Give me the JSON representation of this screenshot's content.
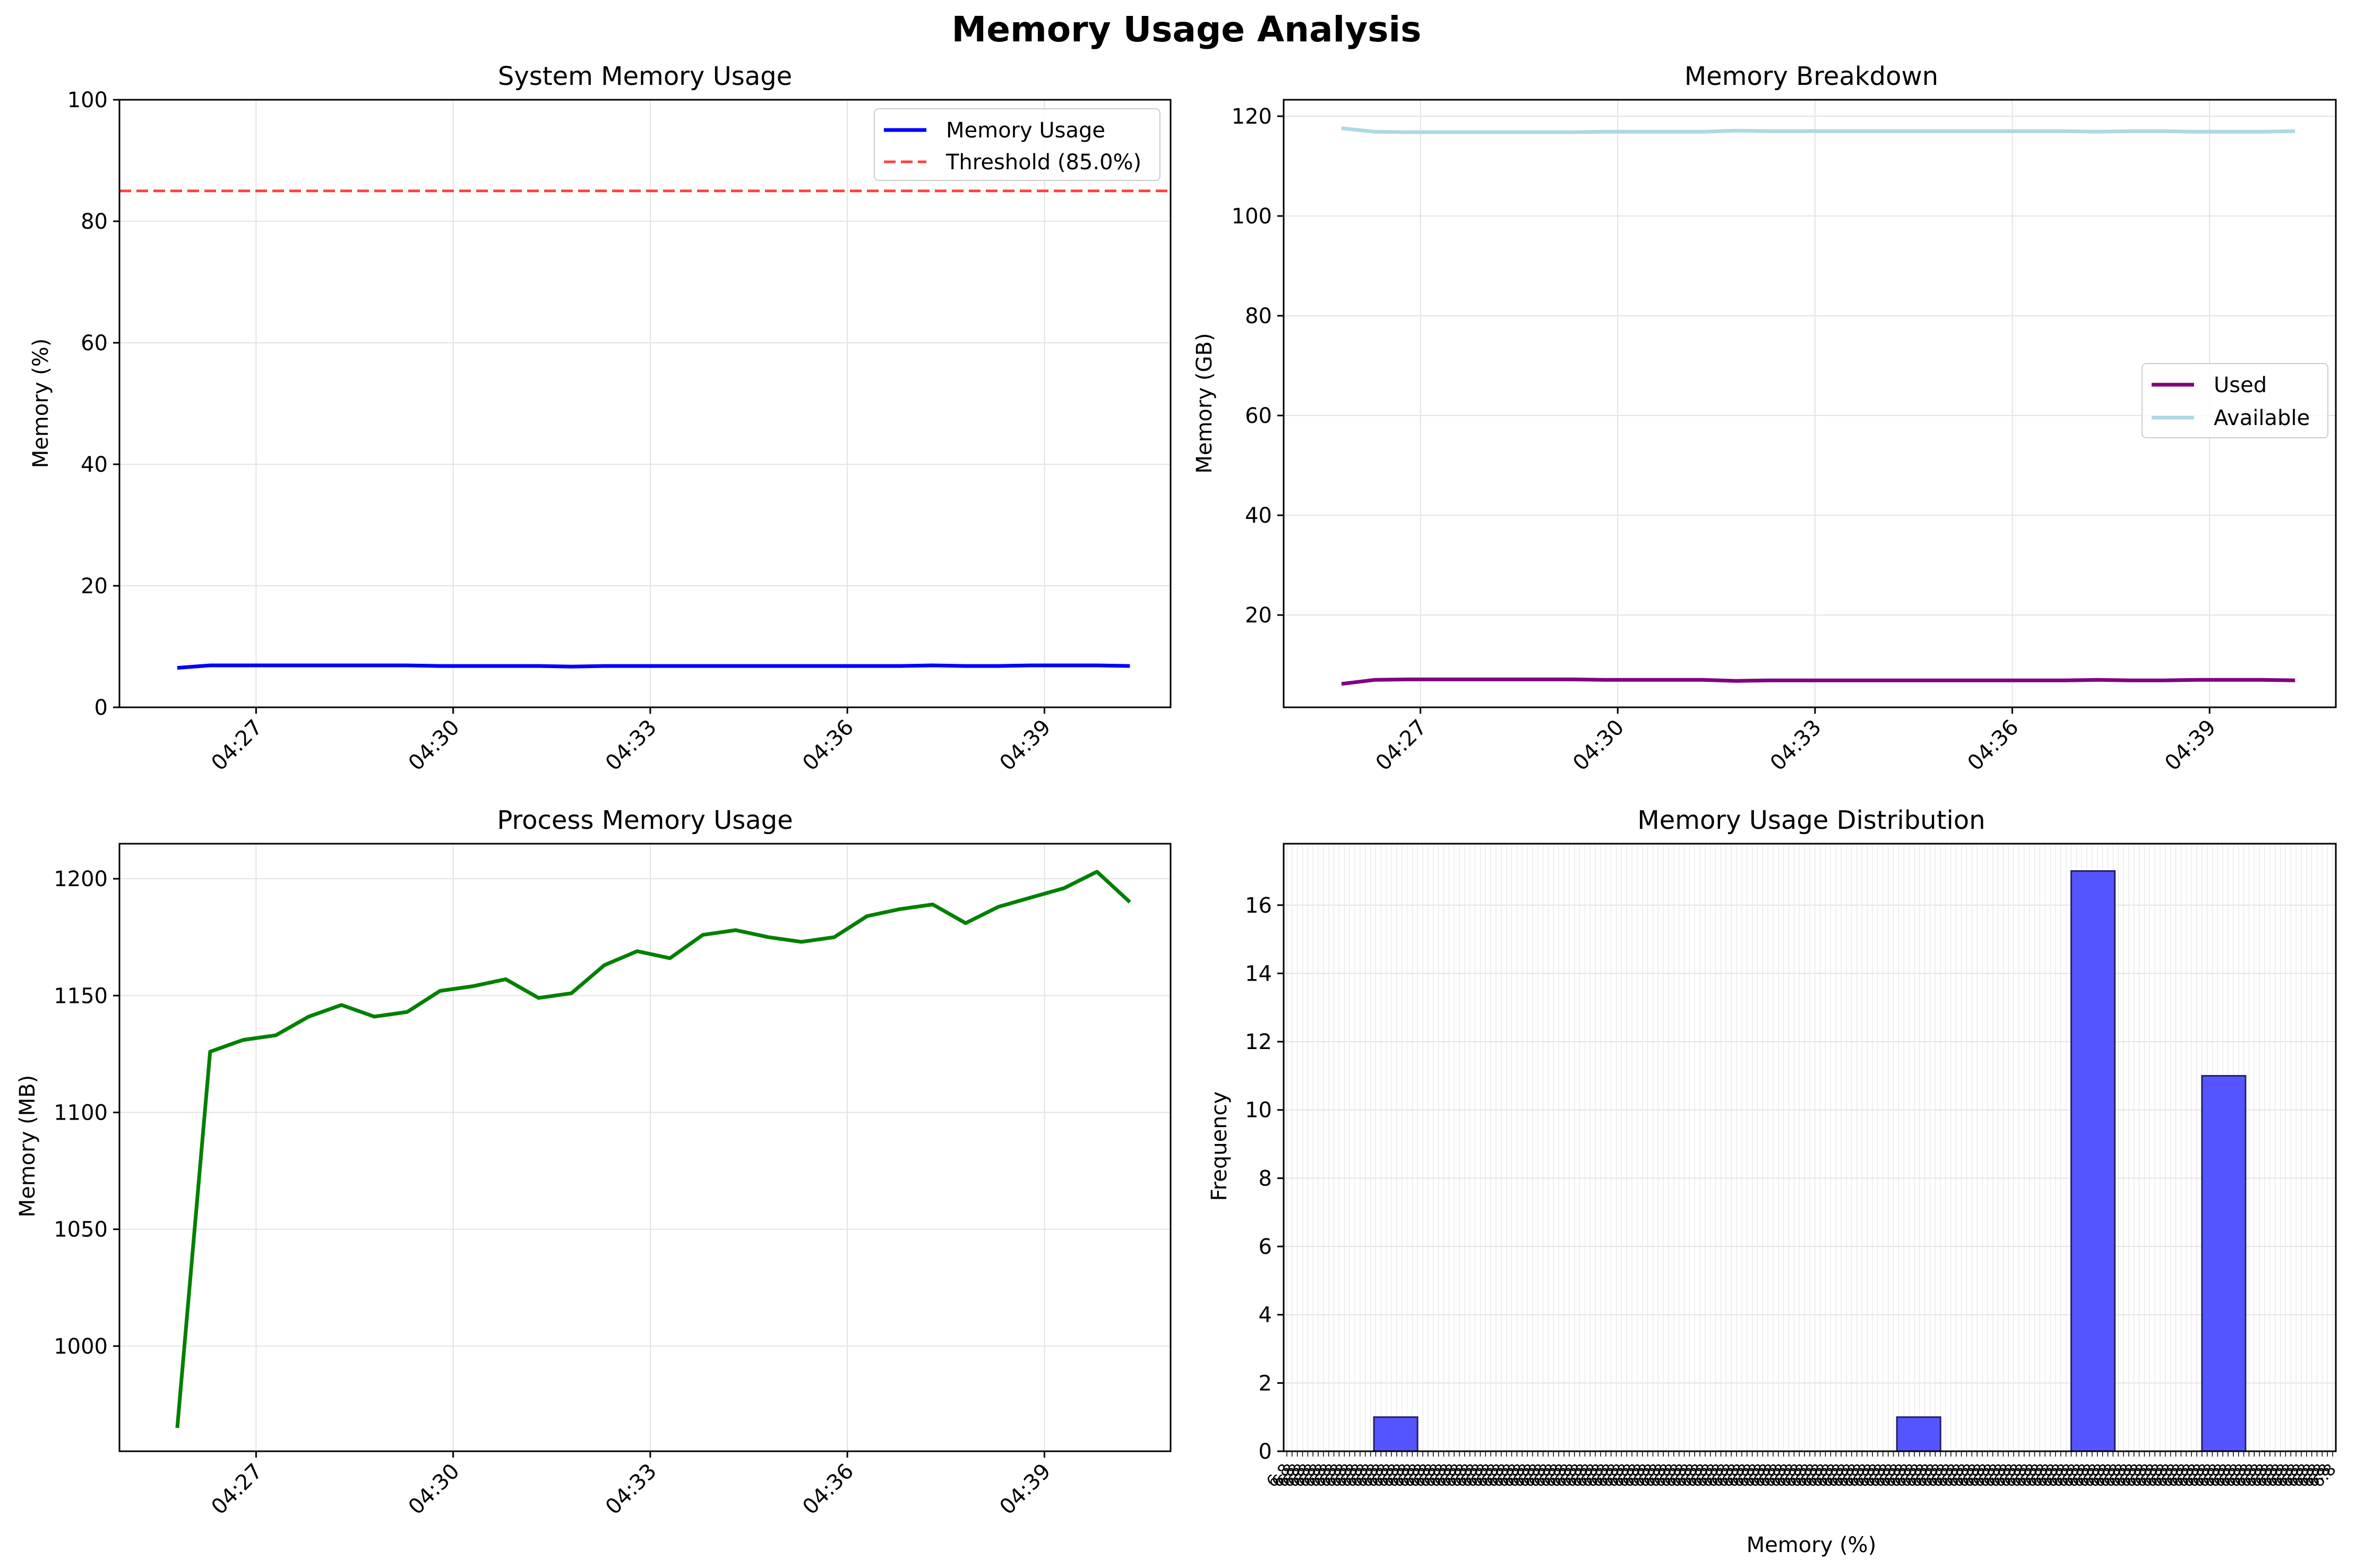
{
  "figure": {
    "title": "Memory Usage Analysis"
  },
  "chart_data": [
    {
      "id": "system",
      "type": "line",
      "title": "System Memory Usage",
      "xlabel": "",
      "ylabel": "Memory (%)",
      "ylim": [
        0,
        100
      ],
      "yticks": [
        0,
        20,
        40,
        60,
        80,
        100
      ],
      "xticks": [
        "04:27",
        "04:30",
        "04:33",
        "04:36",
        "04:39"
      ],
      "x_tick_minutes": [
        27,
        30,
        33,
        36,
        39
      ],
      "x_range_minutes": [
        24.92,
        40.92
      ],
      "grid": true,
      "legend": "top-right",
      "x": [
        25.8,
        26.3,
        26.8,
        27.3,
        27.8,
        28.3,
        28.8,
        29.3,
        29.8,
        30.3,
        30.8,
        31.3,
        31.8,
        32.3,
        32.8,
        33.3,
        33.8,
        34.3,
        34.8,
        35.3,
        35.8,
        36.3,
        36.8,
        37.3,
        37.8,
        38.3,
        38.8,
        39.3,
        39.8,
        40.3
      ],
      "series": [
        {
          "name": "Memory Usage",
          "color": "#0000ff",
          "style": "solid",
          "values": [
            6.5,
            6.9,
            6.9,
            6.9,
            6.9,
            6.9,
            6.9,
            6.9,
            6.8,
            6.8,
            6.8,
            6.8,
            6.7,
            6.8,
            6.8,
            6.8,
            6.8,
            6.8,
            6.8,
            6.8,
            6.8,
            6.8,
            6.8,
            6.9,
            6.8,
            6.8,
            6.9,
            6.9,
            6.9,
            6.8
          ]
        }
      ],
      "threshold": {
        "name": "Threshold (85.0%)",
        "value": 85.0,
        "color": "#ff4040"
      }
    },
    {
      "id": "breakdown",
      "type": "line",
      "title": "Memory Breakdown",
      "xlabel": "",
      "ylabel": "Memory (GB)",
      "ylim": [
        1.5,
        123.3
      ],
      "yticks": [
        20,
        40,
        60,
        80,
        100,
        120
      ],
      "xticks": [
        "04:27",
        "04:30",
        "04:33",
        "04:36",
        "04:39"
      ],
      "x_tick_minutes": [
        27,
        30,
        33,
        36,
        39
      ],
      "x_range_minutes": [
        24.92,
        40.92
      ],
      "grid": true,
      "legend": "center-right",
      "x": [
        25.8,
        26.3,
        26.8,
        27.3,
        27.8,
        28.3,
        28.8,
        29.3,
        29.8,
        30.3,
        30.8,
        31.3,
        31.8,
        32.3,
        32.8,
        33.3,
        33.8,
        34.3,
        34.8,
        35.3,
        35.8,
        36.3,
        36.8,
        37.3,
        37.8,
        38.3,
        38.8,
        39.3,
        39.8,
        40.3
      ],
      "series": [
        {
          "name": "Used",
          "color": "#800080",
          "values": [
            6.2,
            7.0,
            7.1,
            7.1,
            7.1,
            7.1,
            7.1,
            7.1,
            7.0,
            7.0,
            7.0,
            7.0,
            6.8,
            6.9,
            6.9,
            6.9,
            6.9,
            6.9,
            6.9,
            6.9,
            6.9,
            6.9,
            6.9,
            7.0,
            6.9,
            6.9,
            7.0,
            7.0,
            7.0,
            6.9
          ]
        },
        {
          "name": "Available",
          "color": "#add8e6",
          "values": [
            117.6,
            116.9,
            116.8,
            116.8,
            116.8,
            116.8,
            116.8,
            116.8,
            116.9,
            116.9,
            116.9,
            116.9,
            117.1,
            117.0,
            117.0,
            117.0,
            117.0,
            117.0,
            117.0,
            117.0,
            117.0,
            117.0,
            117.0,
            116.9,
            117.0,
            117.0,
            116.9,
            116.9,
            116.9,
            117.0
          ]
        }
      ]
    },
    {
      "id": "process",
      "type": "line",
      "title": "Process Memory Usage",
      "xlabel": "",
      "ylabel": "Memory (MB)",
      "ylim": [
        955,
        1215
      ],
      "yticks": [
        1000,
        1050,
        1100,
        1150,
        1200
      ],
      "xticks": [
        "04:27",
        "04:30",
        "04:33",
        "04:36",
        "04:39"
      ],
      "x_tick_minutes": [
        27,
        30,
        33,
        36,
        39
      ],
      "x_range_minutes": [
        24.92,
        40.92
      ],
      "grid": true,
      "x": [
        25.8,
        26.3,
        26.8,
        27.3,
        27.8,
        28.3,
        28.8,
        29.3,
        29.8,
        30.3,
        30.8,
        31.3,
        31.8,
        32.3,
        32.8,
        33.3,
        33.8,
        34.3,
        34.8,
        35.3,
        35.8,
        36.3,
        36.8,
        37.3,
        37.8,
        38.3,
        38.8,
        39.3,
        39.8,
        40.3
      ],
      "series": [
        {
          "color": "#008000",
          "values": [
            965,
            1126,
            1131,
            1133,
            1141,
            1146,
            1141,
            1143,
            1152,
            1154,
            1157,
            1149,
            1151,
            1163,
            1169,
            1166,
            1176,
            1178,
            1175,
            1173,
            1175,
            1184,
            1187,
            1189,
            1181,
            1188,
            1192,
            1196,
            1203,
            1190
          ]
        }
      ]
    },
    {
      "id": "distribution",
      "type": "bar",
      "title": "Memory Usage Distribution",
      "xlabel": "Memory (%)",
      "ylabel": "Frequency",
      "ylim": [
        0,
        17.8
      ],
      "yticks": [
        0,
        2,
        4,
        6,
        8,
        10,
        12,
        14,
        16
      ],
      "grid": true,
      "bar_color": "#5555ff",
      "bins": [
        {
          "index": 1,
          "value": 1
        },
        {
          "index": 13,
          "value": 1
        },
        {
          "index": 17,
          "value": 17
        },
        {
          "index": 20,
          "value": 11
        }
      ],
      "num_bins": 22,
      "tick_label_text": "6.8"
    }
  ]
}
